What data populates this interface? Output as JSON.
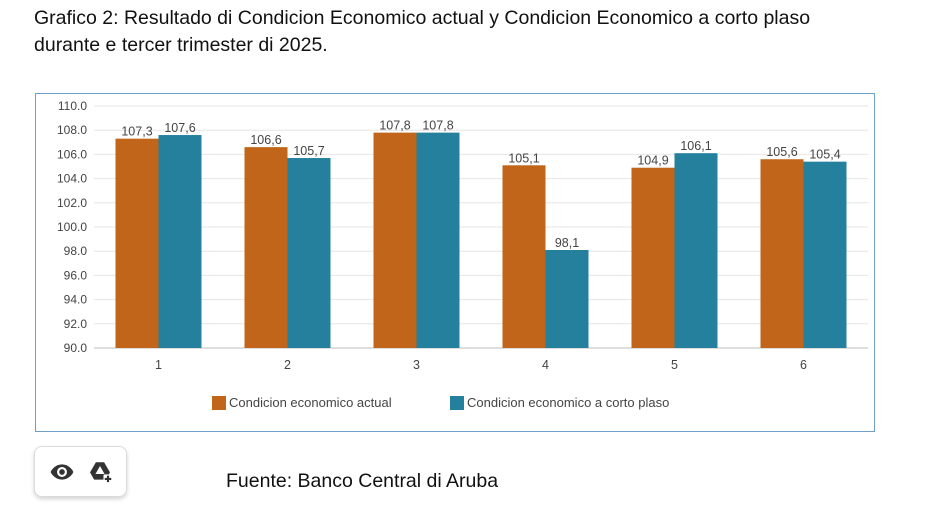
{
  "title": "Grafico 2: Resultado di Condicion Economico actual y Condicion Economico a corto plaso durante e tercer trimester di 2025.",
  "source": "Fuente: Banco Central di Aruba",
  "toolbar": {
    "view_icon": "eye-icon",
    "drive_icon": "add-to-drive-icon"
  },
  "colors": {
    "series1": "#c0651a",
    "series2": "#24809c",
    "grid": "#e6e6e6",
    "text": "#444444"
  },
  "chart_data": {
    "type": "bar",
    "title": "",
    "xlabel": "",
    "ylabel": "",
    "ylim": [
      90.0,
      110.0
    ],
    "ytick_step": 2.0,
    "yticks": [
      "110.0",
      "108.0",
      "106.0",
      "104.0",
      "102.0",
      "100.0",
      "98.0",
      "96.0",
      "94.0",
      "92.0",
      "90.0"
    ],
    "categories": [
      "1",
      "2",
      "3",
      "4",
      "5",
      "6"
    ],
    "legend_position": "bottom",
    "series": [
      {
        "name": "Condicion economico actual",
        "values": [
          107.3,
          106.6,
          107.8,
          105.1,
          104.9,
          105.6
        ],
        "labels": [
          "107,3",
          "106,6",
          "107,8",
          "105,1",
          "104,9",
          "105,6"
        ]
      },
      {
        "name": "Condicion economico a corto plaso",
        "values": [
          107.6,
          105.7,
          107.8,
          98.1,
          106.1,
          105.4
        ],
        "labels": [
          "107,6",
          "105,7",
          "107,8",
          "98,1",
          "106,1",
          "105,4"
        ]
      }
    ]
  }
}
